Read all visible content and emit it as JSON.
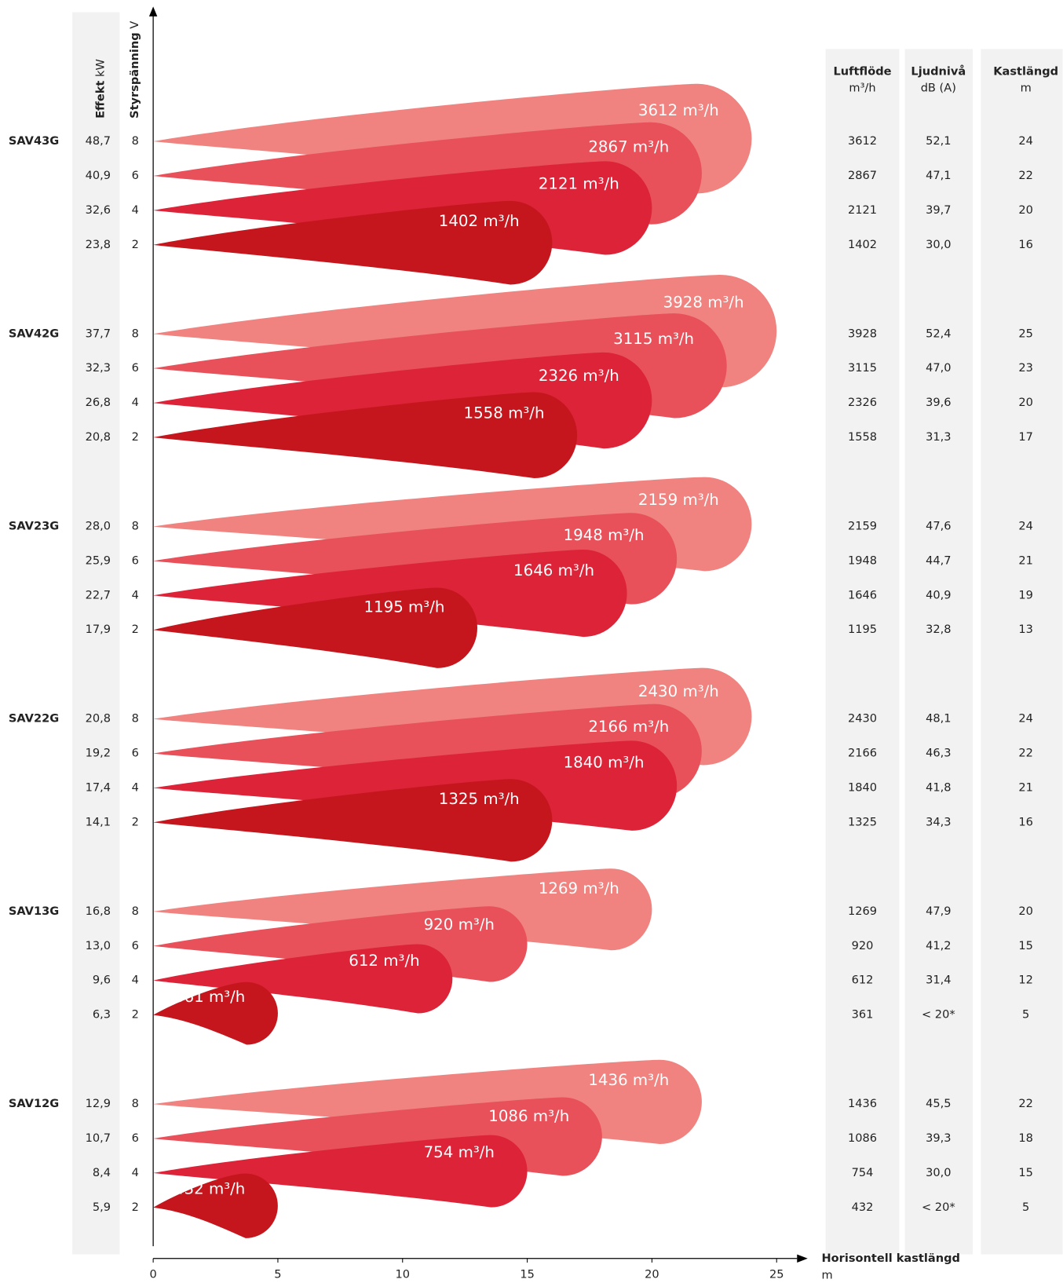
{
  "chart_data": {
    "type": "throw",
    "x_label": "Horisontell kastlängd",
    "x_unit": "m",
    "xlim": [
      0,
      25
    ],
    "xticks": [
      0,
      5,
      10,
      15,
      20,
      25
    ],
    "left_columns": [
      {
        "title": "Effekt",
        "unit": "kW"
      },
      {
        "title": "Styrspänning",
        "unit": "V"
      }
    ],
    "right_columns": [
      {
        "title": "Luftflöde",
        "unit": "m³/h"
      },
      {
        "title": "Ljudnivå",
        "unit": "dB (A)"
      },
      {
        "title": "Kastlängd",
        "unit": "m"
      }
    ],
    "colors": [
      "#f0837f",
      "#e8505a",
      "#dc2338",
      "#c4161c"
    ],
    "groups": [
      {
        "name": "SAV43G",
        "rows": [
          {
            "effekt": "48,7",
            "voltage": 8,
            "airflow": 3612,
            "airflow_label": "3612 m³/h",
            "sound": "52,1",
            "throw": 24
          },
          {
            "effekt": "40,9",
            "voltage": 6,
            "airflow": 2867,
            "airflow_label": "2867 m³/h",
            "sound": "47,1",
            "throw": 22
          },
          {
            "effekt": "32,6",
            "voltage": 4,
            "airflow": 2121,
            "airflow_label": "2121 m³/h",
            "sound": "39,7",
            "throw": 20
          },
          {
            "effekt": "23,8",
            "voltage": 2,
            "airflow": 1402,
            "airflow_label": "1402 m³/h",
            "sound": "30,0",
            "throw": 16
          }
        ]
      },
      {
        "name": "SAV42G",
        "rows": [
          {
            "effekt": "37,7",
            "voltage": 8,
            "airflow": 3928,
            "airflow_label": "3928 m³/h",
            "sound": "52,4",
            "throw": 25
          },
          {
            "effekt": "32,3",
            "voltage": 6,
            "airflow": 3115,
            "airflow_label": "3115 m³/h",
            "sound": "47,0",
            "throw": 23
          },
          {
            "effekt": "26,8",
            "voltage": 4,
            "airflow": 2326,
            "airflow_label": "2326 m³/h",
            "sound": "39,6",
            "throw": 20
          },
          {
            "effekt": "20,8",
            "voltage": 2,
            "airflow": 1558,
            "airflow_label": "1558 m³/h",
            "sound": "31,3",
            "throw": 17
          }
        ]
      },
      {
        "name": "SAV23G",
        "rows": [
          {
            "effekt": "28,0",
            "voltage": 8,
            "airflow": 2159,
            "airflow_label": "2159 m³/h",
            "sound": "47,6",
            "throw": 24
          },
          {
            "effekt": "25,9",
            "voltage": 6,
            "airflow": 1948,
            "airflow_label": "1948 m³/h",
            "sound": "44,7",
            "throw": 21
          },
          {
            "effekt": "22,7",
            "voltage": 4,
            "airflow": 1646,
            "airflow_label": "1646 m³/h",
            "sound": "40,9",
            "throw": 19
          },
          {
            "effekt": "17,9",
            "voltage": 2,
            "airflow": 1195,
            "airflow_label": "1195 m³/h",
            "sound": "32,8",
            "throw": 13
          }
        ]
      },
      {
        "name": "SAV22G",
        "rows": [
          {
            "effekt": "20,8",
            "voltage": 8,
            "airflow": 2430,
            "airflow_label": "2430 m³/h",
            "sound": "48,1",
            "throw": 24
          },
          {
            "effekt": "19,2",
            "voltage": 6,
            "airflow": 2166,
            "airflow_label": "2166 m³/h",
            "sound": "46,3",
            "throw": 22
          },
          {
            "effekt": "17,4",
            "voltage": 4,
            "airflow": 1840,
            "airflow_label": "1840 m³/h",
            "sound": "41,8",
            "throw": 21
          },
          {
            "effekt": "14,1",
            "voltage": 2,
            "airflow": 1325,
            "airflow_label": "1325 m³/h",
            "sound": "34,3",
            "throw": 16
          }
        ]
      },
      {
        "name": "SAV13G",
        "rows": [
          {
            "effekt": "16,8",
            "voltage": 8,
            "airflow": 1269,
            "airflow_label": "1269 m³/h",
            "sound": "47,9",
            "throw": 20
          },
          {
            "effekt": "13,0",
            "voltage": 6,
            "airflow": 920,
            "airflow_label": "920 m³/h",
            "sound": "41,2",
            "throw": 15
          },
          {
            "effekt": "9,6",
            "voltage": 4,
            "airflow": 612,
            "airflow_label": "612 m³/h",
            "sound": "31,4",
            "throw": 12
          },
          {
            "effekt": "6,3",
            "voltage": 2,
            "airflow": 361,
            "airflow_label": "361 m³/h",
            "sound": "< 20*",
            "throw": 5
          }
        ]
      },
      {
        "name": "SAV12G",
        "rows": [
          {
            "effekt": "12,9",
            "voltage": 8,
            "airflow": 1436,
            "airflow_label": "1436 m³/h",
            "sound": "45,5",
            "throw": 22
          },
          {
            "effekt": "10,7",
            "voltage": 6,
            "airflow": 1086,
            "airflow_label": "1086 m³/h",
            "sound": "39,3",
            "throw": 18
          },
          {
            "effekt": "8,4",
            "voltage": 4,
            "airflow": 754,
            "airflow_label": "754 m³/h",
            "sound": "30,0",
            "throw": 15
          },
          {
            "effekt": "5,9",
            "voltage": 2,
            "airflow": 432,
            "airflow_label": "432 m³/h",
            "sound": "< 20*",
            "throw": 5
          }
        ]
      }
    ]
  }
}
